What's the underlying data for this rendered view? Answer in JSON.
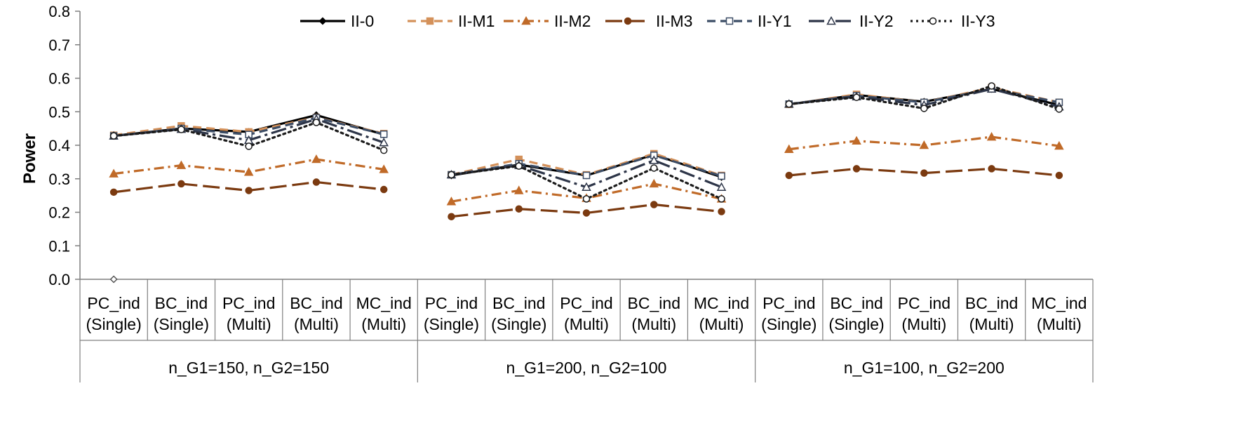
{
  "chart_data": {
    "type": "line",
    "title": "",
    "ylabel": "Power",
    "xlabel": "",
    "ylim": [
      0,
      0.8
    ],
    "yticks": [
      "0.0",
      "0.1",
      "0.2",
      "0.3",
      "0.4",
      "0.5",
      "0.6",
      "0.7",
      "0.8"
    ],
    "grid": false,
    "legend_position": "top-right",
    "categories": [
      {
        "line1": "PC_ind",
        "line2": "(Single)"
      },
      {
        "line1": "BC_ind",
        "line2": "(Single)"
      },
      {
        "line1": "PC_ind",
        "line2": "(Multi)"
      },
      {
        "line1": "BC_ind",
        "line2": "(Multi)"
      },
      {
        "line1": "MC_ind",
        "line2": "(Multi)"
      },
      {
        "line1": "PC_ind",
        "line2": "(Single)"
      },
      {
        "line1": "BC_ind",
        "line2": "(Single)"
      },
      {
        "line1": "PC_ind",
        "line2": "(Multi)"
      },
      {
        "line1": "BC_ind",
        "line2": "(Multi)"
      },
      {
        "line1": "MC_ind",
        "line2": "(Multi)"
      },
      {
        "line1": "PC_ind",
        "line2": "(Single)"
      },
      {
        "line1": "BC_ind",
        "line2": "(Single)"
      },
      {
        "line1": "PC_ind",
        "line2": "(Multi)"
      },
      {
        "line1": "BC_ind",
        "line2": "(Multi)"
      },
      {
        "line1": "MC_ind",
        "line2": "(Multi)"
      }
    ],
    "groups": [
      {
        "label": "n_G1=150, n_G2=150"
      },
      {
        "label": "n_G1=200, n_G2=100"
      },
      {
        "label": "n_G1=100, n_G2=200"
      }
    ],
    "series": [
      {
        "name": "II-0",
        "color": "#000000",
        "dash": "solid",
        "marker": "diamond-filled",
        "values": [
          [
            0.428,
            0.45,
            0.44,
            0.49,
            0.432
          ],
          [
            0.31,
            0.342,
            0.31,
            0.372,
            0.305
          ],
          [
            0.522,
            0.55,
            0.53,
            0.568,
            0.52
          ]
        ]
      },
      {
        "name": "II-M1",
        "color": "#d4915a",
        "dash": "dashed",
        "marker": "square-filled",
        "values": [
          [
            0.43,
            0.458,
            0.44,
            0.483,
            0.435
          ],
          [
            0.312,
            0.358,
            0.312,
            0.375,
            0.31
          ],
          [
            0.522,
            0.552,
            0.528,
            0.572,
            0.528
          ]
        ]
      },
      {
        "name": "II-M2",
        "color": "#c06a28",
        "dash": "dashdot",
        "marker": "triangle-filled",
        "values": [
          [
            0.315,
            0.34,
            0.32,
            0.358,
            0.328
          ],
          [
            0.232,
            0.265,
            0.242,
            0.285,
            0.24
          ],
          [
            0.388,
            0.413,
            0.4,
            0.425,
            0.398
          ]
        ]
      },
      {
        "name": "II-M3",
        "color": "#7b3a10",
        "dash": "longdash",
        "marker": "circle-filled",
        "values": [
          [
            0.26,
            0.285,
            0.265,
            0.29,
            0.268
          ],
          [
            0.187,
            0.21,
            0.198,
            0.223,
            0.202
          ],
          [
            0.31,
            0.33,
            0.317,
            0.33,
            0.31
          ]
        ]
      },
      {
        "name": "II-Y1",
        "color": "#3c4d66",
        "dash": "dashed",
        "marker": "square-open",
        "values": [
          [
            0.428,
            0.45,
            0.432,
            0.482,
            0.433
          ],
          [
            0.312,
            0.345,
            0.31,
            0.37,
            0.308
          ],
          [
            0.523,
            0.548,
            0.528,
            0.568,
            0.528
          ]
        ]
      },
      {
        "name": "II-Y2",
        "color": "#2d3548",
        "dash": "longdashdot",
        "marker": "triangle-open",
        "values": [
          [
            0.428,
            0.448,
            0.415,
            0.478,
            0.408
          ],
          [
            0.312,
            0.34,
            0.275,
            0.355,
            0.275
          ],
          [
            0.523,
            0.545,
            0.52,
            0.568,
            0.515
          ]
        ]
      },
      {
        "name": "II-Y3",
        "color": "#1a1a1a",
        "dash": "dotted",
        "marker": "circle-open",
        "values": [
          [
            0.428,
            0.447,
            0.397,
            0.468,
            0.385
          ],
          [
            0.312,
            0.338,
            0.24,
            0.332,
            0.24
          ],
          [
            0.523,
            0.543,
            0.51,
            0.577,
            0.508
          ]
        ]
      }
    ],
    "annotations": [
      {
        "marker": "diamond-open",
        "category_index": 0,
        "y": 0.0
      }
    ]
  }
}
